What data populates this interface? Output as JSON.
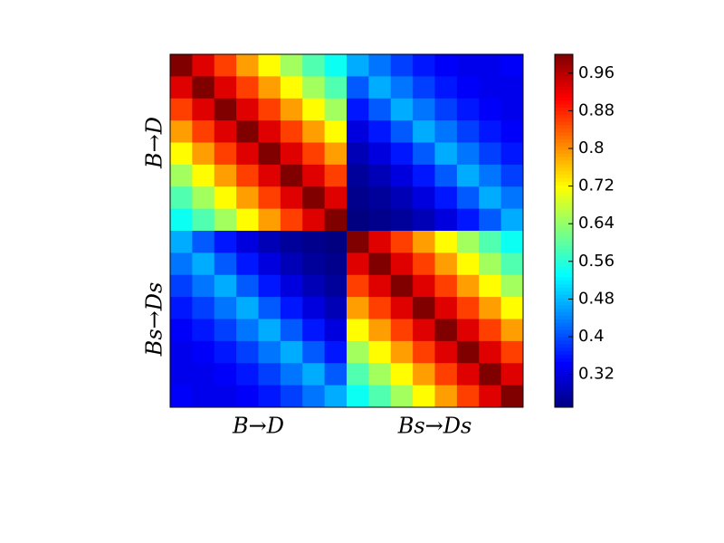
{
  "chart_data": {
    "type": "heatmap",
    "categories": [
      "B→D",
      "Bs→Ds"
    ],
    "colormap": "jet",
    "clim": [
      0.25,
      1.0
    ],
    "cbar_ticks": [
      0.32,
      0.4,
      0.48,
      0.56,
      0.64,
      0.72,
      0.8,
      0.88,
      0.96
    ],
    "z": [
      [
        1.0,
        0.93,
        0.86,
        0.79,
        0.72,
        0.65,
        0.59,
        0.54,
        0.47,
        0.43,
        0.39,
        0.36,
        0.34,
        0.33,
        0.33,
        0.34
      ],
      [
        0.93,
        1.0,
        0.93,
        0.86,
        0.79,
        0.72,
        0.65,
        0.59,
        0.41,
        0.47,
        0.43,
        0.39,
        0.36,
        0.34,
        0.33,
        0.33
      ],
      [
        0.86,
        0.93,
        1.0,
        0.93,
        0.86,
        0.79,
        0.72,
        0.65,
        0.36,
        0.41,
        0.47,
        0.43,
        0.39,
        0.36,
        0.34,
        0.33
      ],
      [
        0.79,
        0.86,
        0.93,
        1.0,
        0.93,
        0.86,
        0.79,
        0.72,
        0.32,
        0.36,
        0.41,
        0.47,
        0.43,
        0.39,
        0.36,
        0.34
      ],
      [
        0.72,
        0.79,
        0.86,
        0.93,
        1.0,
        0.93,
        0.86,
        0.79,
        0.29,
        0.32,
        0.36,
        0.41,
        0.47,
        0.43,
        0.39,
        0.36
      ],
      [
        0.65,
        0.72,
        0.79,
        0.86,
        0.93,
        1.0,
        0.93,
        0.86,
        0.27,
        0.29,
        0.32,
        0.36,
        0.41,
        0.47,
        0.43,
        0.39
      ],
      [
        0.59,
        0.65,
        0.72,
        0.79,
        0.86,
        0.93,
        1.0,
        0.93,
        0.26,
        0.27,
        0.29,
        0.32,
        0.36,
        0.41,
        0.47,
        0.43
      ],
      [
        0.54,
        0.59,
        0.65,
        0.72,
        0.79,
        0.86,
        0.93,
        1.0,
        0.25,
        0.26,
        0.27,
        0.29,
        0.32,
        0.36,
        0.41,
        0.47
      ],
      [
        0.47,
        0.41,
        0.36,
        0.32,
        0.29,
        0.27,
        0.26,
        0.25,
        1.0,
        0.93,
        0.86,
        0.79,
        0.72,
        0.65,
        0.59,
        0.54
      ],
      [
        0.43,
        0.47,
        0.41,
        0.36,
        0.32,
        0.29,
        0.27,
        0.26,
        0.93,
        1.0,
        0.93,
        0.86,
        0.79,
        0.72,
        0.65,
        0.59
      ],
      [
        0.39,
        0.43,
        0.47,
        0.41,
        0.36,
        0.32,
        0.29,
        0.27,
        0.86,
        0.93,
        1.0,
        0.93,
        0.86,
        0.79,
        0.72,
        0.65
      ],
      [
        0.36,
        0.39,
        0.43,
        0.47,
        0.41,
        0.36,
        0.32,
        0.29,
        0.79,
        0.86,
        0.93,
        1.0,
        0.93,
        0.86,
        0.79,
        0.72
      ],
      [
        0.34,
        0.36,
        0.39,
        0.43,
        0.47,
        0.41,
        0.36,
        0.32,
        0.72,
        0.79,
        0.86,
        0.93,
        1.0,
        0.93,
        0.86,
        0.79
      ],
      [
        0.33,
        0.34,
        0.36,
        0.39,
        0.43,
        0.47,
        0.41,
        0.36,
        0.65,
        0.72,
        0.79,
        0.86,
        0.93,
        1.0,
        0.93,
        0.86
      ],
      [
        0.33,
        0.33,
        0.34,
        0.36,
        0.39,
        0.43,
        0.47,
        0.41,
        0.59,
        0.65,
        0.72,
        0.79,
        0.86,
        0.93,
        1.0,
        0.93
      ],
      [
        0.34,
        0.33,
        0.33,
        0.34,
        0.36,
        0.39,
        0.43,
        0.47,
        0.54,
        0.59,
        0.65,
        0.72,
        0.79,
        0.86,
        0.93,
        1.0
      ]
    ]
  }
}
